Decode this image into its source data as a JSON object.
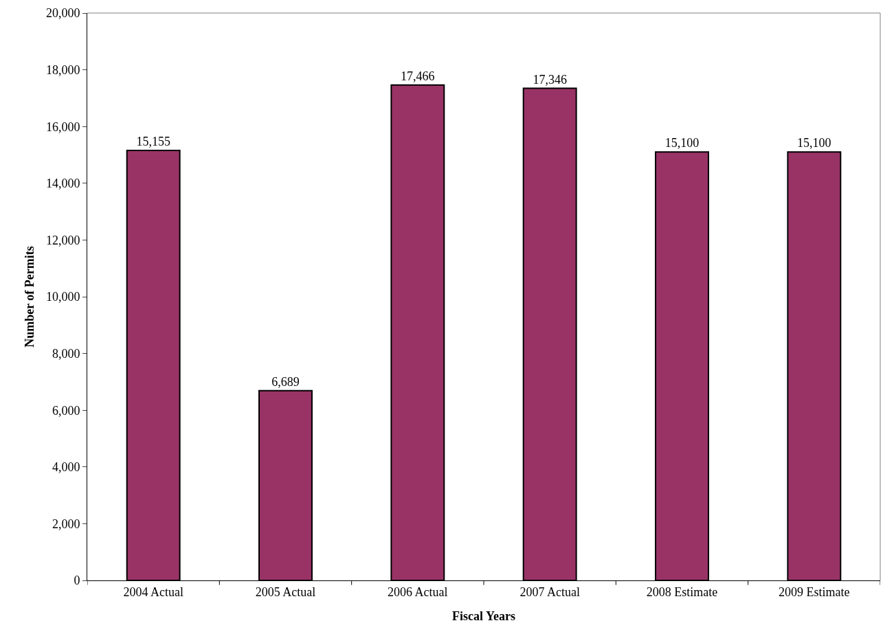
{
  "chart_data": {
    "type": "bar",
    "xlabel": "Fiscal Years",
    "ylabel": "Number of Permits",
    "categories": [
      "2004 Actual",
      "2005 Actual",
      "2006 Actual",
      "2007 Actual",
      "2008 Estimate",
      "2009 Estimate"
    ],
    "values": [
      15155,
      6689,
      17466,
      17346,
      15100,
      15100
    ],
    "color": "#993366",
    "ylim": [
      0,
      20000
    ],
    "yticks": [
      {
        "value": 0,
        "label": "0"
      },
      {
        "value": 2000,
        "label": "2,000"
      },
      {
        "value": 4000,
        "label": "4,000"
      },
      {
        "value": 6000,
        "label": "6,000"
      },
      {
        "value": 8000,
        "label": "8,000"
      },
      {
        "value": 10000,
        "label": "10,000"
      },
      {
        "value": 12000,
        "label": "12,000"
      },
      {
        "value": 14000,
        "label": "14,000"
      },
      {
        "value": 16000,
        "label": "16,000"
      },
      {
        "value": 18000,
        "label": "18,000"
      },
      {
        "value": 20000,
        "label": "20,000"
      }
    ],
    "value_labels": [
      "15,155",
      "6,689",
      "17,466",
      "17,346",
      "15,100",
      "15,100"
    ]
  }
}
